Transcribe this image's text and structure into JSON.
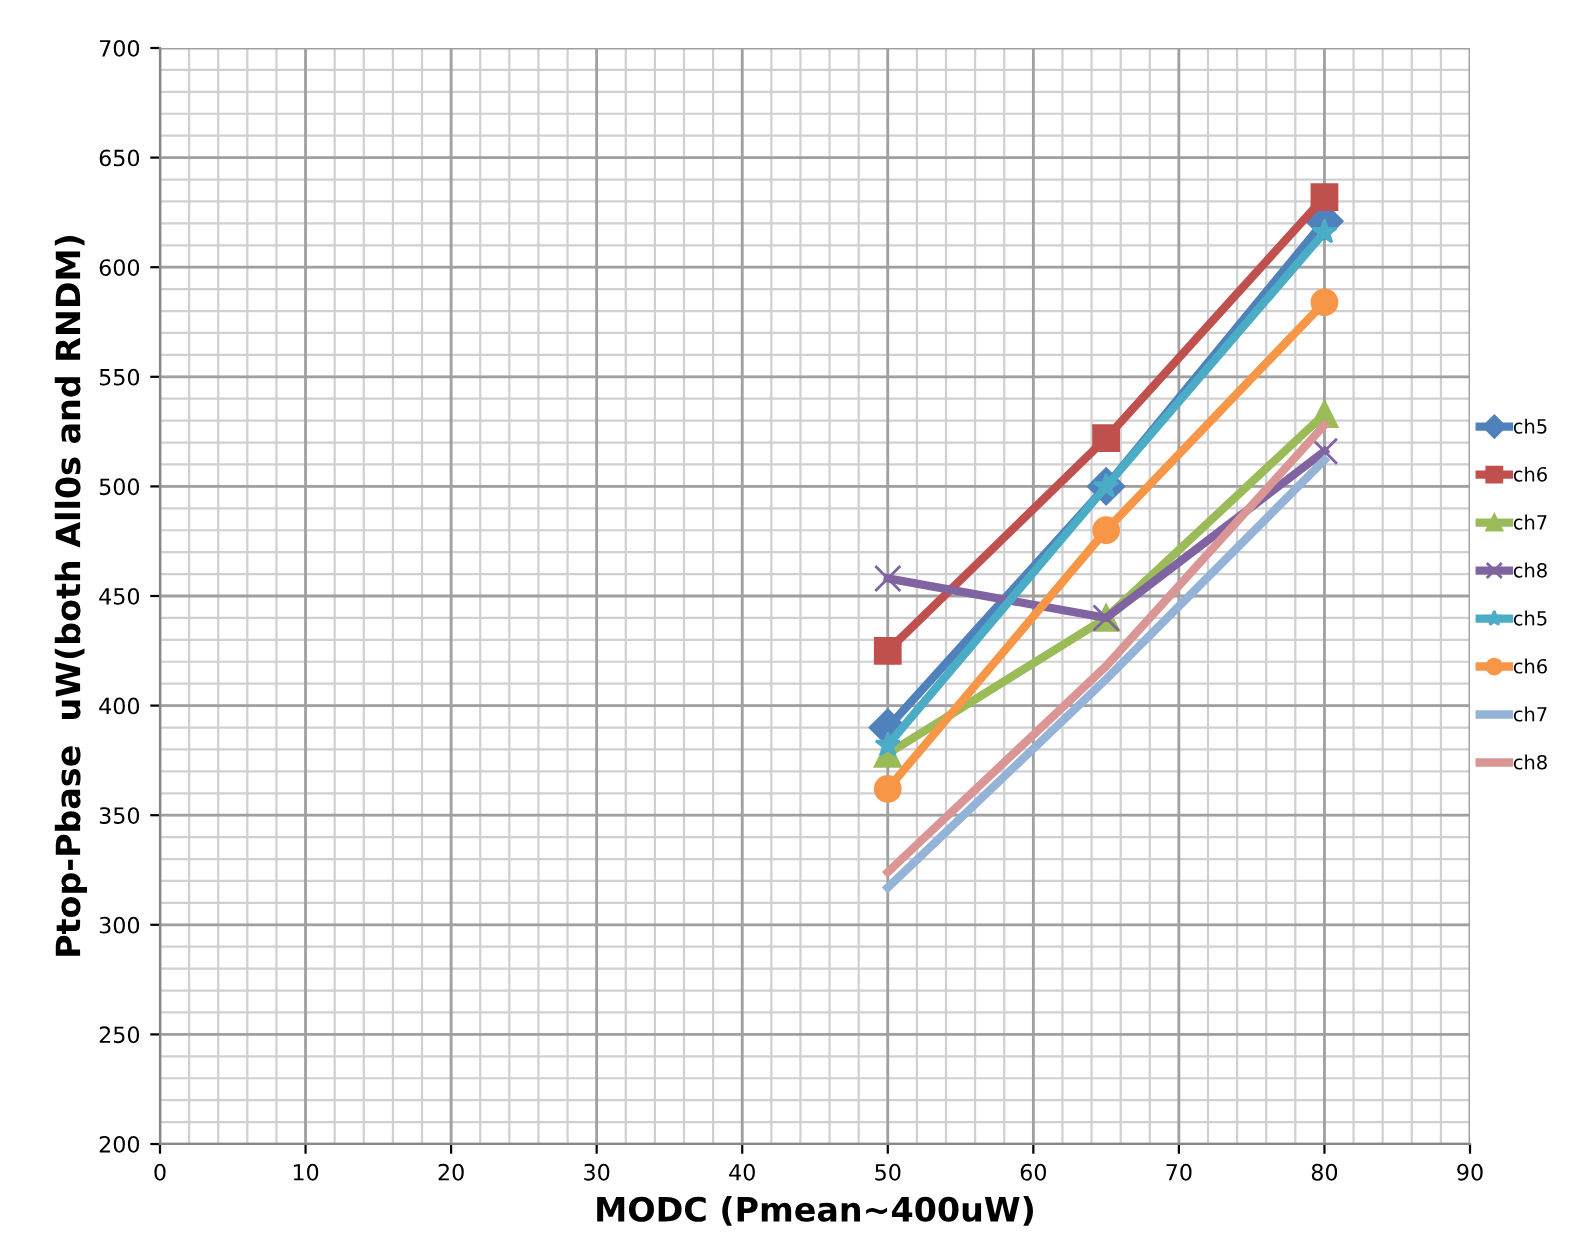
{
  "chart_data": {
    "type": "line",
    "xlabel": "MODC (Pmean~400uW)",
    "ylabel": "Ptop-Pbase  uW(both All0s and RNDM)",
    "x": [
      50,
      65,
      80
    ],
    "series": [
      {
        "name": "ch5",
        "color": "#4f81bd",
        "marker": "diamond",
        "values": [
          390,
          500,
          621
        ]
      },
      {
        "name": "ch6",
        "color": "#c0504d",
        "marker": "square",
        "values": [
          425,
          522,
          632
        ]
      },
      {
        "name": "ch7",
        "color": "#9bbb59",
        "marker": "triangle",
        "values": [
          378,
          440,
          533
        ]
      },
      {
        "name": "ch8",
        "color": "#8064a2",
        "marker": "cross",
        "values": [
          458,
          440,
          516
        ]
      },
      {
        "name": "ch5",
        "color": "#4bacc6",
        "marker": "star",
        "values": [
          382,
          500,
          616
        ]
      },
      {
        "name": "ch6",
        "color": "#f79646",
        "marker": "circle",
        "values": [
          362,
          480,
          584
        ]
      },
      {
        "name": "ch7",
        "color": "#95b3d7",
        "marker": "none",
        "values": [
          317,
          412,
          512
        ]
      },
      {
        "name": "ch8",
        "color": "#d99694",
        "marker": "none",
        "values": [
          324,
          418,
          528
        ]
      }
    ],
    "xlim": [
      0,
      90
    ],
    "xticks": [
      0,
      10,
      20,
      30,
      40,
      50,
      60,
      70,
      80,
      90
    ],
    "ylim": [
      200,
      700
    ],
    "yticks": [
      200,
      250,
      300,
      350,
      400,
      450,
      500,
      550,
      600,
      650,
      700
    ],
    "grid": true,
    "legend": "right"
  }
}
